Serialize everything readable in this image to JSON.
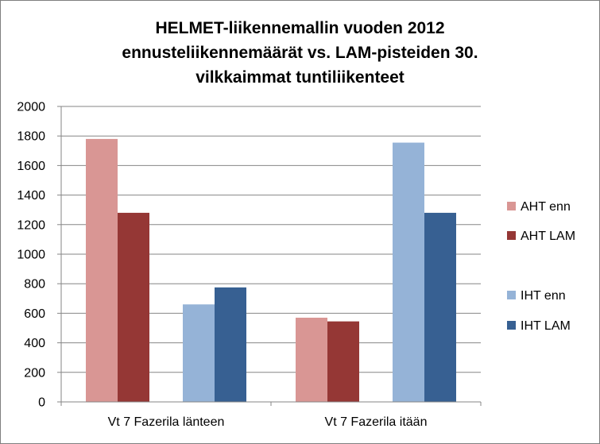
{
  "chart_data": {
    "type": "bar",
    "title_lines": [
      "HELMET-liikennemallin vuoden 2012",
      "ennusteliikennemäärät vs. LAM-pisteiden 30.",
      "vilkkaimmat tuntiliikenteet"
    ],
    "categories": [
      "Vt 7 Fazerila länteen",
      "Vt 7 Fazerila itään"
    ],
    "series": [
      {
        "name": "AHT enn",
        "color": "#d99694",
        "values": [
          1780,
          570
        ]
      },
      {
        "name": "AHT LAM",
        "color": "#953735",
        "values": [
          1280,
          545
        ]
      },
      {
        "name": "IHT enn",
        "color": "#95b3d7",
        "values": [
          660,
          1755
        ]
      },
      {
        "name": "IHT LAM",
        "color": "#376092",
        "values": [
          775,
          1280
        ]
      }
    ],
    "ylim": [
      0,
      2000
    ],
    "yticks": [
      0,
      200,
      400,
      600,
      800,
      1000,
      1200,
      1400,
      1600,
      1800,
      2000
    ],
    "grid": true,
    "legend_position": "right"
  }
}
